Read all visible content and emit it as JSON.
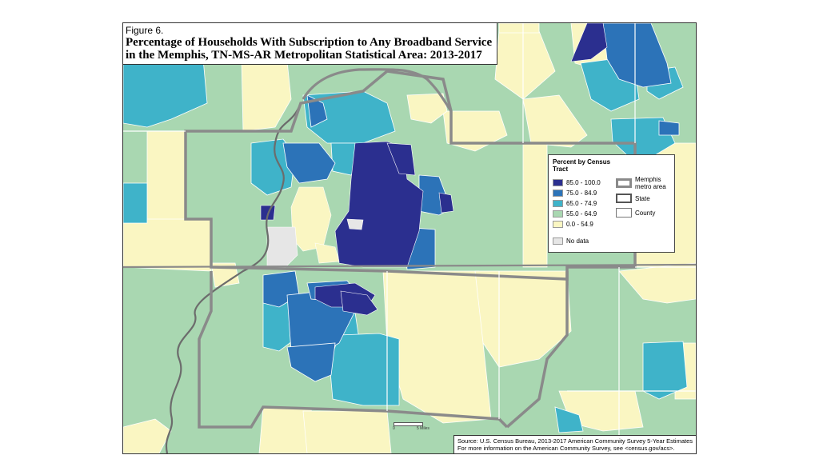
{
  "figure_label": "Figure 6.",
  "title_line1": "Percentage of Households With Subscription to Any Broadband Service",
  "title_line2": "in the Memphis, TN-MS-AR Metropolitan Statistical Area: 2013-2017",
  "legend": {
    "title": "Percent by Census Tract",
    "classes": [
      {
        "label": "85.0 - 100.0",
        "color": "#2b2f8f"
      },
      {
        "label": "75.0 - 84.9",
        "color": "#2c73b8"
      },
      {
        "label": "65.0 - 74.9",
        "color": "#3fb3c9"
      },
      {
        "label": "55.0 - 64.9",
        "color": "#a9d7b1"
      },
      {
        "label": "0.0 - 54.9",
        "color": "#faf6c2"
      }
    ],
    "no_data": {
      "label": "No data",
      "color": "#e6e6e6"
    },
    "boundaries": [
      {
        "label": "Memphis metro area",
        "style": "thick-gray"
      },
      {
        "label": "State",
        "style": "gray"
      },
      {
        "label": "County",
        "style": "thin"
      }
    ]
  },
  "scale": {
    "start": "0",
    "end": "5 Miles"
  },
  "source_line1": "Source: U.S. Census Bureau, 2013-2017 American Community Survey 5-Year Estimates",
  "source_line2": "For more information on the American Community Survey, see <census.gov/acs>."
}
